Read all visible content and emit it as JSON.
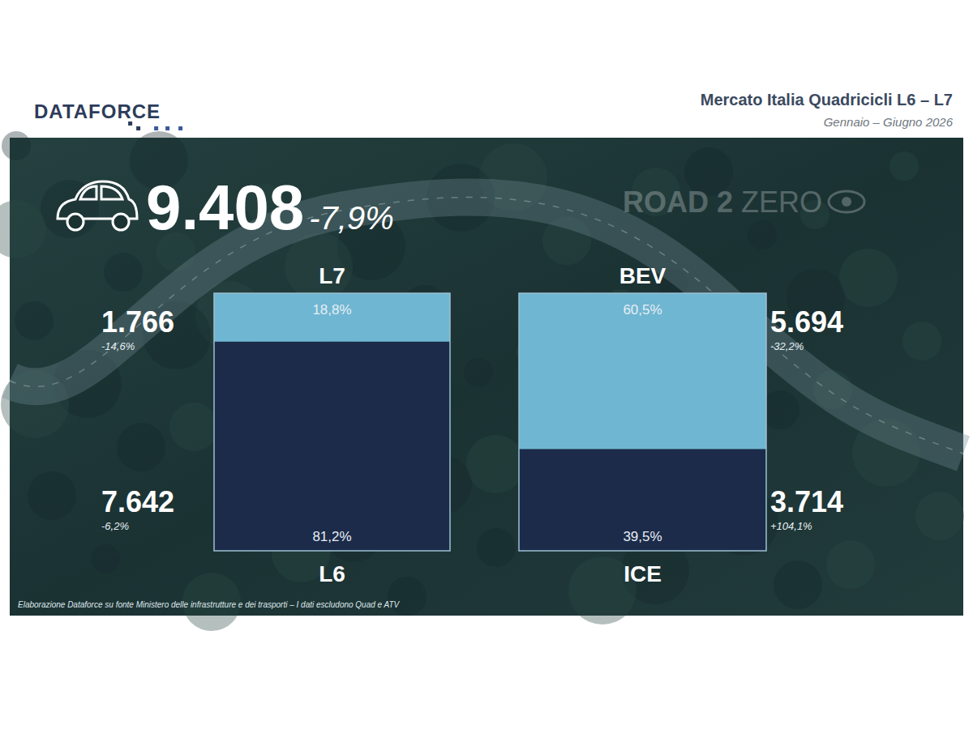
{
  "header": {
    "logo": "DATAFORCE",
    "title": "Mercato Italia Quadricicli L6 – L7",
    "subtitle": "Gennaio – Giugno 2026"
  },
  "total": {
    "value": 9408,
    "label": "9.408",
    "change": -7.9,
    "change_label": "-7,9%"
  },
  "watermark": "ROAD 2 ZERO",
  "footnote": "Elaborazione Dataforce su fonte Ministero delle infrastrutture e dei trasporti – I dati escludono Quad e ATV",
  "chart_data": [
    {
      "type": "bar",
      "stacked": true,
      "data_labels": true,
      "tick_labels": false,
      "categories": [
        null
      ],
      "ylim": [
        0,
        100
      ],
      "series": [
        {
          "name": "L6",
          "color": "#1c2b4a",
          "values": [
            81.2
          ],
          "value_labels": [
            "81,2%"
          ],
          "count": 7642,
          "count_label": "7.642",
          "change": -6.2,
          "change_label": "-6,2%"
        },
        {
          "name": "L7",
          "color": "#6fb6d2",
          "values": [
            18.8
          ],
          "value_labels": [
            "18,8%"
          ],
          "count": 1766,
          "count_label": "1.766",
          "change": -14.6,
          "change_label": "-14,6%"
        }
      ]
    },
    {
      "type": "bar",
      "stacked": true,
      "data_labels": true,
      "tick_labels": false,
      "categories": [
        null
      ],
      "ylim": [
        0,
        100
      ],
      "series": [
        {
          "name": "ICE",
          "color": "#1c2b4a",
          "values": [
            39.5
          ],
          "value_labels": [
            "39,5%"
          ],
          "count": 3714,
          "count_label": "3.714",
          "change": 104.1,
          "change_label": "+104,1%"
        },
        {
          "name": "BEV",
          "color": "#6fb6d2",
          "values": [
            60.5
          ],
          "value_labels": [
            "60,5%"
          ],
          "count": 5694,
          "count_label": "5.694",
          "change": -32.2,
          "change_label": "-32,2%"
        }
      ]
    }
  ]
}
